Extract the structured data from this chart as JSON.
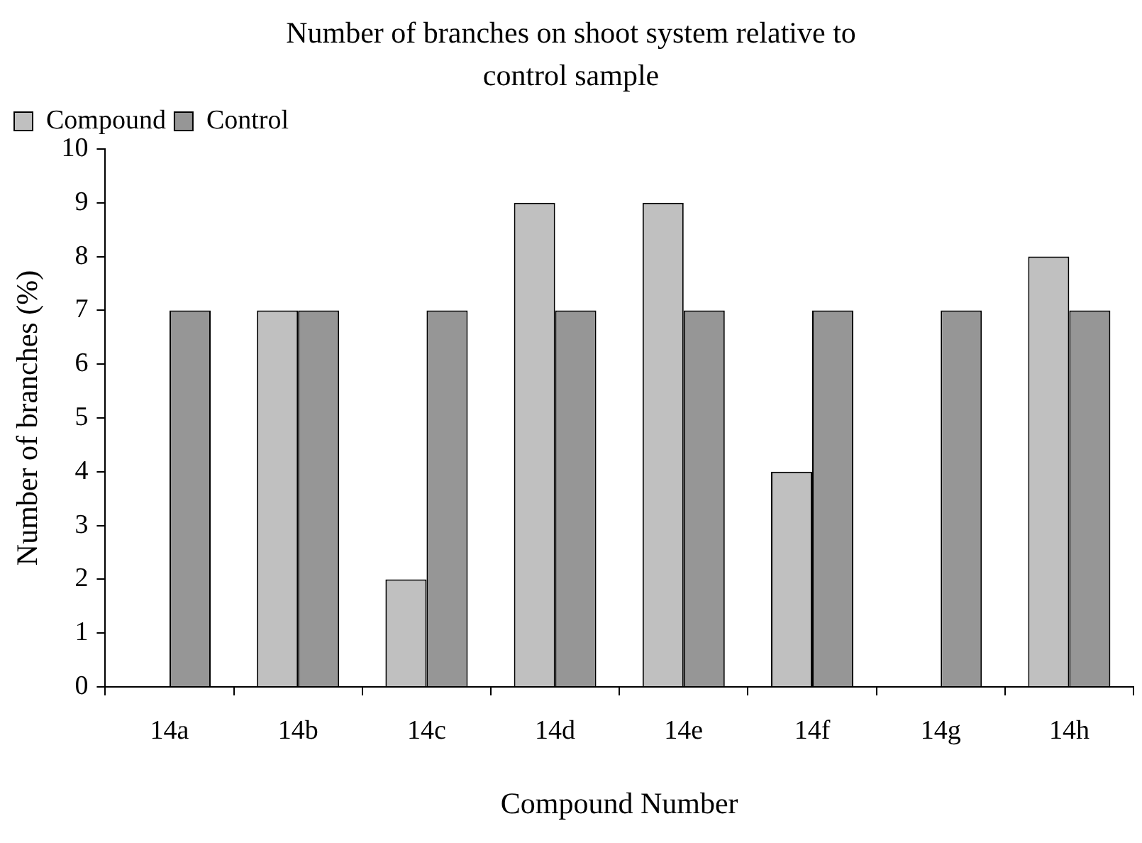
{
  "chart_data": {
    "type": "bar",
    "title": "Number of branches on shoot system relative to control sample",
    "xlabel": "Compound Number",
    "ylabel": "Number of branches (%)",
    "categories": [
      "14a",
      "14b",
      "14c",
      "14d",
      "14e",
      "14f",
      "14g",
      "14h"
    ],
    "series": [
      {
        "name": "Compound",
        "color": "#c0c0c0",
        "values": [
          0,
          7,
          2,
          9,
          9,
          4,
          0,
          8
        ]
      },
      {
        "name": "Control",
        "color": "#969696",
        "values": [
          7,
          7,
          7,
          7,
          7,
          7,
          7,
          7
        ]
      }
    ],
    "ylim": [
      0,
      10
    ],
    "yticks": [
      0,
      1,
      2,
      3,
      4,
      5,
      6,
      7,
      8,
      9,
      10
    ],
    "grid": false,
    "legend": "top left"
  }
}
